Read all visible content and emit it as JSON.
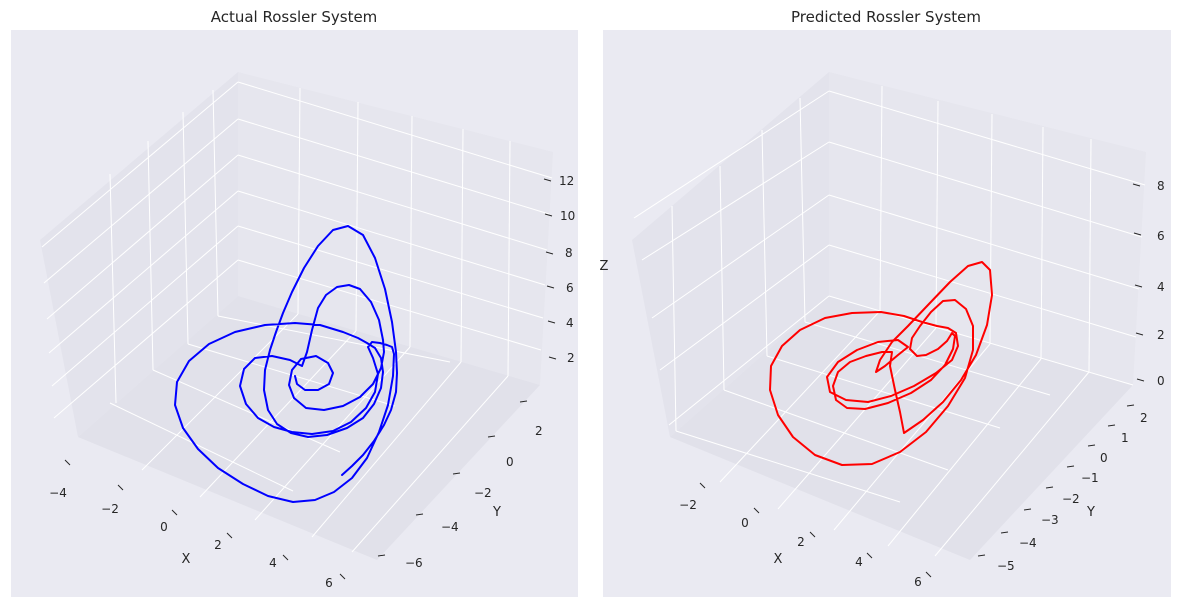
{
  "chart_data": [
    {
      "type": "line3d",
      "title": "Actual Rossler System",
      "xlabel": "X",
      "ylabel": "Y",
      "zlabel": "Z",
      "xticks": [
        "−4",
        "−2",
        "0",
        "2",
        "4",
        "6"
      ],
      "yticks": [
        "−6",
        "−4",
        "−2",
        "0",
        "2"
      ],
      "zticks": [
        "2",
        "4",
        "6",
        "8",
        "10",
        "12"
      ],
      "line_color": "#0000ff",
      "grid": true,
      "series_points": [
        [
          342,
          475
        ],
        [
          352,
          466
        ],
        [
          363,
          455
        ],
        [
          374,
          441
        ],
        [
          384,
          425
        ],
        [
          391,
          410
        ],
        [
          396,
          392
        ],
        [
          397,
          373
        ],
        [
          396,
          352
        ],
        [
          392,
          322
        ],
        [
          385,
          289
        ],
        [
          375,
          258
        ],
        [
          363,
          235
        ],
        [
          348,
          226
        ],
        [
          333,
          230
        ],
        [
          318,
          246
        ],
        [
          304,
          268
        ],
        [
          292,
          292
        ],
        [
          283,
          313
        ],
        [
          276,
          332
        ],
        [
          270,
          350
        ],
        [
          265,
          370
        ],
        [
          264,
          390
        ],
        [
          268,
          410
        ],
        [
          277,
          424
        ],
        [
          291,
          433
        ],
        [
          308,
          437
        ],
        [
          327,
          435
        ],
        [
          347,
          428
        ],
        [
          363,
          418
        ],
        [
          374,
          404
        ],
        [
          381,
          388
        ],
        [
          383,
          372
        ],
        [
          381,
          358
        ],
        [
          375,
          348
        ],
        [
          367,
          343
        ],
        [
          358,
          338
        ],
        [
          343,
          332
        ],
        [
          320,
          325
        ],
        [
          295,
          323
        ],
        [
          265,
          325
        ],
        [
          235,
          332
        ],
        [
          209,
          344
        ],
        [
          189,
          361
        ],
        [
          177,
          382
        ],
        [
          175,
          405
        ],
        [
          183,
          428
        ],
        [
          198,
          449
        ],
        [
          218,
          468
        ],
        [
          243,
          484
        ],
        [
          268,
          496
        ],
        [
          293,
          502
        ],
        [
          315,
          500
        ],
        [
          334,
          492
        ],
        [
          352,
          478
        ],
        [
          367,
          458
        ],
        [
          379,
          432
        ],
        [
          388,
          405
        ],
        [
          393,
          376
        ],
        [
          394,
          354
        ],
        [
          392,
          347
        ],
        [
          387,
          345
        ],
        [
          380,
          343
        ],
        [
          372,
          342
        ],
        [
          368,
          347
        ],
        [
          373,
          358
        ],
        [
          378,
          374
        ],
        [
          375,
          392
        ],
        [
          366,
          408
        ],
        [
          351,
          422
        ],
        [
          333,
          431
        ],
        [
          312,
          434
        ],
        [
          292,
          432
        ],
        [
          274,
          427
        ],
        [
          258,
          418
        ],
        [
          246,
          404
        ],
        [
          240,
          386
        ],
        [
          244,
          369
        ],
        [
          255,
          358
        ],
        [
          272,
          356
        ],
        [
          290,
          360
        ],
        [
          302,
          366
        ],
        [
          307,
          352
        ],
        [
          312,
          330
        ],
        [
          318,
          308
        ],
        [
          326,
          295
        ],
        [
          337,
          287
        ],
        [
          349,
          285
        ],
        [
          360,
          289
        ],
        [
          371,
          302
        ],
        [
          379,
          320
        ],
        [
          383,
          340
        ],
        [
          384,
          352
        ],
        [
          381,
          368
        ],
        [
          373,
          384
        ],
        [
          360,
          397
        ],
        [
          343,
          406
        ],
        [
          324,
          410
        ],
        [
          306,
          408
        ],
        [
          294,
          398
        ],
        [
          289,
          385
        ],
        [
          292,
          370
        ],
        [
          301,
          359
        ],
        [
          316,
          356
        ],
        [
          328,
          363
        ],
        [
          333,
          373
        ],
        [
          329,
          384
        ],
        [
          318,
          390
        ],
        [
          305,
          390
        ],
        [
          297,
          384
        ],
        [
          295,
          376
        ]
      ]
    },
    {
      "type": "line3d",
      "title": "Predicted Rossler System",
      "xlabel": "X",
      "ylabel": "Y",
      "zlabel": "Z",
      "xticks": [
        "−2",
        "0",
        "2",
        "4",
        "6"
      ],
      "yticks": [
        "−5",
        "−4",
        "−3",
        "−2",
        "−1",
        "0",
        "1",
        "2"
      ],
      "zticks": [
        "0",
        "2",
        "4",
        "6",
        "8"
      ],
      "line_color": "#ff0000",
      "grid": true,
      "series_points": [
        [
          904,
          433
        ],
        [
          923,
          420
        ],
        [
          943,
          402
        ],
        [
          961,
          380
        ],
        [
          976,
          355
        ],
        [
          987,
          325
        ],
        [
          992,
          295
        ],
        [
          990,
          270
        ],
        [
          982,
          262
        ],
        [
          968,
          266
        ],
        [
          950,
          282
        ],
        [
          928,
          305
        ],
        [
          908,
          326
        ],
        [
          892,
          342
        ],
        [
          880,
          360
        ],
        [
          876,
          372
        ],
        [
          885,
          366
        ],
        [
          898,
          355
        ],
        [
          908,
          347
        ],
        [
          898,
          340
        ],
        [
          878,
          342
        ],
        [
          857,
          350
        ],
        [
          838,
          362
        ],
        [
          827,
          377
        ],
        [
          830,
          392
        ],
        [
          846,
          400
        ],
        [
          868,
          402
        ],
        [
          891,
          396
        ],
        [
          914,
          386
        ],
        [
          936,
          373
        ],
        [
          952,
          360
        ],
        [
          958,
          346
        ],
        [
          956,
          333
        ],
        [
          948,
          328
        ],
        [
          937,
          326
        ],
        [
          922,
          322
        ],
        [
          904,
          316
        ],
        [
          881,
          312
        ],
        [
          852,
          313
        ],
        [
          825,
          318
        ],
        [
          800,
          330
        ],
        [
          782,
          346
        ],
        [
          771,
          366
        ],
        [
          770,
          390
        ],
        [
          778,
          415
        ],
        [
          793,
          437
        ],
        [
          815,
          455
        ],
        [
          842,
          465
        ],
        [
          872,
          464
        ],
        [
          900,
          452
        ],
        [
          926,
          432
        ],
        [
          948,
          406
        ],
        [
          965,
          378
        ],
        [
          973,
          350
        ],
        [
          973,
          326
        ],
        [
          966,
          309
        ],
        [
          955,
          300
        ],
        [
          943,
          301
        ],
        [
          931,
          312
        ],
        [
          920,
          326
        ],
        [
          912,
          338
        ],
        [
          910,
          349
        ],
        [
          917,
          356
        ],
        [
          926,
          355
        ],
        [
          938,
          349
        ],
        [
          947,
          341
        ],
        [
          952,
          333
        ],
        [
          955,
          336
        ],
        [
          953,
          349
        ],
        [
          945,
          365
        ],
        [
          931,
          380
        ],
        [
          911,
          393
        ],
        [
          888,
          403
        ],
        [
          865,
          409
        ],
        [
          847,
          408
        ],
        [
          836,
          400
        ],
        [
          833,
          386
        ],
        [
          838,
          372
        ],
        [
          850,
          362
        ],
        [
          866,
          356
        ],
        [
          882,
          352
        ],
        [
          892,
          352
        ],
        [
          890,
          366
        ],
        [
          895,
          390
        ],
        [
          900,
          412
        ],
        [
          904,
          433
        ]
      ]
    }
  ]
}
